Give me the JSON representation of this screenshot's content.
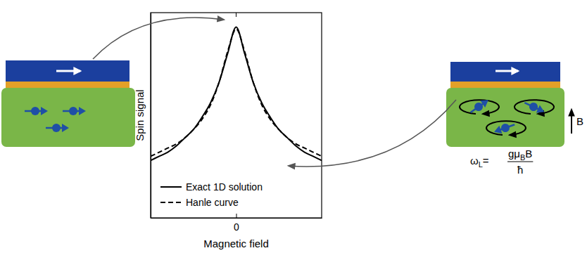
{
  "chart_data": {
    "type": "line",
    "x_label": "Magnetic field",
    "y_label": "Spin signal",
    "x": [
      -1,
      -0.9,
      -0.8,
      -0.7,
      -0.6,
      -0.5,
      -0.4,
      -0.3,
      -0.2,
      -0.1,
      0,
      0.1,
      0.2,
      0.3,
      0.4,
      0.5,
      0.6,
      0.7,
      0.8,
      0.9,
      1
    ],
    "series": [
      {
        "name": "Exact 1D solution",
        "color": "#000000",
        "line_style": "solid",
        "values": [
          0.28,
          0.3,
          0.32,
          0.35,
          0.39,
          0.43,
          0.49,
          0.56,
          0.66,
          0.8,
          0.93,
          0.8,
          0.66,
          0.56,
          0.49,
          0.43,
          0.39,
          0.35,
          0.32,
          0.3,
          0.28
        ]
      },
      {
        "name": "Hanle curve",
        "color": "#000000",
        "line_style": "dashed",
        "values": [
          0.3,
          0.32,
          0.34,
          0.36,
          0.39,
          0.43,
          0.48,
          0.55,
          0.66,
          0.81,
          0.92,
          0.81,
          0.66,
          0.55,
          0.48,
          0.43,
          0.39,
          0.36,
          0.34,
          0.32,
          0.3
        ]
      }
    ],
    "xlim": [
      -1,
      1
    ],
    "xticks": [
      0
    ],
    "ylim": [
      0,
      1
    ],
    "tick_labels": "x",
    "grid": false,
    "legend": "lower left",
    "annotations": {
      "field": "B",
      "larmor_frequency": {
        "lhs": "ω",
        "lhs_sub": "L",
        "eq": "=",
        "num": "gμ",
        "num_sub": "B",
        "num_tail": "B",
        "den": "ħ"
      }
    }
  }
}
